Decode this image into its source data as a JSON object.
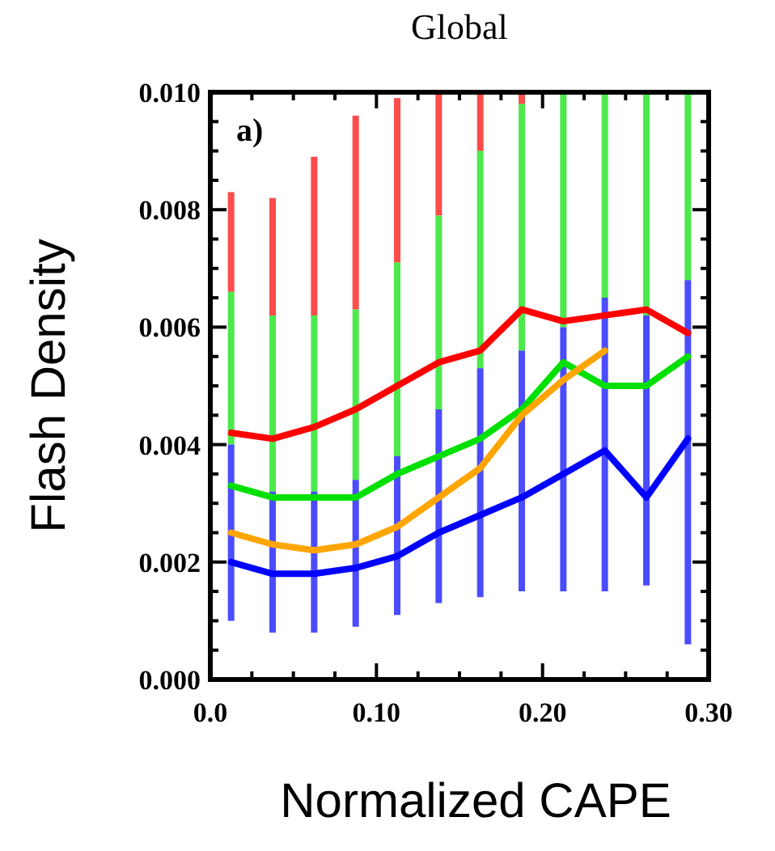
{
  "chart_data": {
    "type": "line",
    "title": "Global",
    "xlabel": "Normalized CAPE",
    "ylabel": "Flash Density",
    "annotations": [
      "a)"
    ],
    "x": [
      0.0125,
      0.0375,
      0.0625,
      0.0875,
      0.1125,
      0.1375,
      0.1625,
      0.1875,
      0.2125,
      0.2375,
      0.2625,
      0.2875
    ],
    "series": [
      {
        "color": "#ff0000",
        "values": [
          0.0042,
          0.0041,
          0.0043,
          0.0046,
          0.005,
          0.0054,
          0.0056,
          0.0063,
          0.0061,
          0.0062,
          0.0063,
          0.0059
        ],
        "errors": [
          [
            0.0066,
            0.0083
          ],
          [
            0.0062,
            0.0082
          ],
          [
            0.0062,
            0.0089
          ],
          [
            0.0063,
            0.0096
          ],
          [
            0.0071,
            0.0099
          ],
          [
            0.0079,
            0.01
          ],
          [
            0.009,
            0.01
          ],
          [
            0.0098,
            0.01
          ],
          null,
          null,
          null,
          null
        ]
      },
      {
        "color": "#00e000",
        "values": [
          0.0033,
          0.0031,
          0.0031,
          0.0031,
          0.0035,
          0.0038,
          0.0041,
          0.0046,
          0.0054,
          0.005,
          0.005,
          0.0055
        ],
        "errors": [
          [
            0.004,
            0.0066
          ],
          [
            0.0032,
            0.0062
          ],
          [
            0.0032,
            0.0062
          ],
          [
            0.0034,
            0.0063
          ],
          [
            0.0038,
            0.0071
          ],
          [
            0.0046,
            0.0079
          ],
          [
            0.0053,
            0.009
          ],
          [
            0.0056,
            0.0098
          ],
          [
            0.006,
            0.01
          ],
          [
            0.0065,
            0.01
          ],
          [
            0.0062,
            0.01
          ],
          [
            0.0068,
            0.01
          ]
        ]
      },
      {
        "color": "#ffa500",
        "values": [
          0.0025,
          0.0023,
          0.0022,
          0.0023,
          0.0026,
          0.0031,
          0.0036,
          0.0045,
          0.0051,
          0.0056,
          null,
          null
        ]
      },
      {
        "color": "#0000ff",
        "values": [
          0.002,
          0.0018,
          0.0018,
          0.0019,
          0.0021,
          0.0025,
          0.0028,
          0.0031,
          0.0035,
          0.0039,
          0.0031,
          0.0041
        ],
        "errors": [
          [
            0.001,
            0.004
          ],
          [
            0.0008,
            0.0032
          ],
          [
            0.0008,
            0.0032
          ],
          [
            0.0009,
            0.0034
          ],
          [
            0.0011,
            0.0038
          ],
          [
            0.0013,
            0.0046
          ],
          [
            0.0014,
            0.0053
          ],
          [
            0.0015,
            0.0056
          ],
          [
            0.0015,
            0.006
          ],
          [
            0.0015,
            0.0065
          ],
          [
            0.0016,
            0.0062
          ],
          [
            0.0006,
            0.0068
          ]
        ]
      }
    ],
    "xlim": [
      0,
      0.3
    ],
    "ylim": [
      0,
      0.01
    ],
    "xticks": [
      {
        "value": 0,
        "label": "0.0"
      },
      {
        "value": 0.025,
        "label": null
      },
      {
        "value": 0.05,
        "label": null
      },
      {
        "value": 0.075,
        "label": null
      },
      {
        "value": 0.1,
        "label": "0.10"
      },
      {
        "value": 0.125,
        "label": null
      },
      {
        "value": 0.15,
        "label": null
      },
      {
        "value": 0.175,
        "label": null
      },
      {
        "value": 0.2,
        "label": "0.20"
      },
      {
        "value": 0.225,
        "label": null
      },
      {
        "value": 0.25,
        "label": null
      },
      {
        "value": 0.275,
        "label": null
      },
      {
        "value": 0.3,
        "label": "0.30"
      }
    ],
    "yticks": [
      {
        "value": 0,
        "label": "0.000"
      },
      {
        "value": 0.0005,
        "label": null
      },
      {
        "value": 0.001,
        "label": null
      },
      {
        "value": 0.0015,
        "label": null
      },
      {
        "value": 0.002,
        "label": "0.002"
      },
      {
        "value": 0.0025,
        "label": null
      },
      {
        "value": 0.003,
        "label": null
      },
      {
        "value": 0.0035,
        "label": null
      },
      {
        "value": 0.004,
        "label": "0.004"
      },
      {
        "value": 0.0045,
        "label": null
      },
      {
        "value": 0.005,
        "label": null
      },
      {
        "value": 0.0055,
        "label": null
      },
      {
        "value": 0.006,
        "label": "0.006"
      },
      {
        "value": 0.0065,
        "label": null
      },
      {
        "value": 0.007,
        "label": null
      },
      {
        "value": 0.0075,
        "label": null
      },
      {
        "value": 0.008,
        "label": "0.008"
      },
      {
        "value": 0.0085,
        "label": null
      },
      {
        "value": 0.009,
        "label": null
      },
      {
        "value": 0.0095,
        "label": null
      },
      {
        "value": 0.01,
        "label": "0.010"
      }
    ],
    "grid": false
  }
}
